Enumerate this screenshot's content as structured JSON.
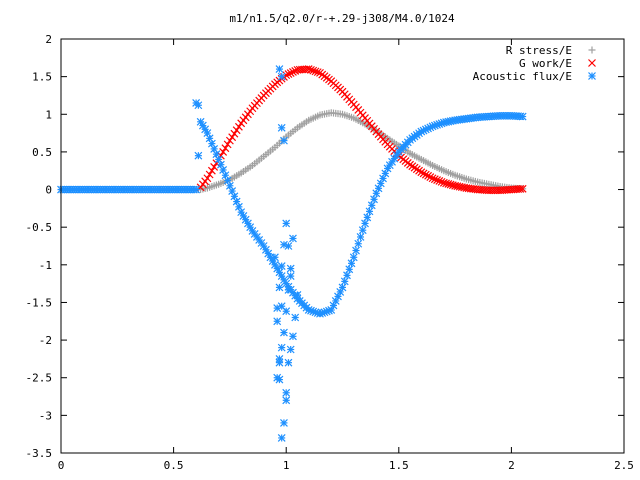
{
  "chart_data": {
    "type": "scatter",
    "title": "m1/n1.5/q2.0/r-+.29-j308/M4.0/1024",
    "xlabel": "",
    "ylabel": "",
    "xlim": [
      0,
      2.5
    ],
    "ylim": [
      -3.5,
      2
    ],
    "x_ticks": [
      "0",
      "0.5",
      "1",
      "1.5",
      "2",
      "2.5"
    ],
    "x_tick_values": [
      0,
      0.5,
      1,
      1.5,
      2,
      2.5
    ],
    "y_ticks": [
      "2",
      "1.5",
      "1",
      "0.5",
      "0",
      "-0.5",
      "-1",
      "-1.5",
      "-2",
      "-2.5",
      "-3",
      "-3.5"
    ],
    "y_tick_values": [
      2,
      1.5,
      1,
      0.5,
      0,
      -0.5,
      -1,
      -1.5,
      -2,
      -2.5,
      -3,
      -3.5
    ],
    "grid": false,
    "legend_position": "top-right",
    "series": [
      {
        "name": "R stress/E",
        "marker": "plus",
        "color": "#a0a0a0",
        "x": [
          0.0,
          0.1,
          0.2,
          0.3,
          0.4,
          0.5,
          0.6,
          0.62,
          0.65,
          0.7,
          0.75,
          0.8,
          0.85,
          0.9,
          0.95,
          1.0,
          1.05,
          1.1,
          1.15,
          1.2,
          1.25,
          1.3,
          1.35,
          1.4,
          1.45,
          1.5,
          1.55,
          1.6,
          1.65,
          1.7,
          1.75,
          1.8,
          1.85,
          1.9,
          1.95,
          2.0,
          2.05
        ],
        "y": [
          0.0,
          0.0,
          0.0,
          0.0,
          0.0,
          0.0,
          0.0,
          0.0,
          0.02,
          0.07,
          0.13,
          0.22,
          0.32,
          0.44,
          0.56,
          0.7,
          0.82,
          0.92,
          0.99,
          1.02,
          1.0,
          0.95,
          0.87,
          0.78,
          0.68,
          0.58,
          0.48,
          0.4,
          0.32,
          0.25,
          0.19,
          0.14,
          0.1,
          0.07,
          0.04,
          0.02,
          0.01
        ]
      },
      {
        "name": "G work/E",
        "marker": "cross",
        "color": "#ff0000",
        "x": [
          0.62,
          0.65,
          0.7,
          0.75,
          0.8,
          0.85,
          0.9,
          0.95,
          1.0,
          1.05,
          1.1,
          1.15,
          1.2,
          1.25,
          1.3,
          1.35,
          1.4,
          1.45,
          1.5,
          1.55,
          1.6,
          1.65,
          1.7,
          1.75,
          1.8,
          1.85,
          1.9,
          1.95,
          2.0,
          2.05
        ],
        "y": [
          0.03,
          0.15,
          0.4,
          0.65,
          0.88,
          1.08,
          1.25,
          1.4,
          1.52,
          1.59,
          1.6,
          1.55,
          1.44,
          1.3,
          1.13,
          0.95,
          0.77,
          0.6,
          0.45,
          0.33,
          0.23,
          0.15,
          0.09,
          0.05,
          0.02,
          0.0,
          -0.01,
          -0.01,
          0.0,
          0.01
        ]
      },
      {
        "name": "Acoustic flux/E",
        "marker": "star",
        "color": "#1e90ff",
        "x": [
          0.0,
          0.1,
          0.2,
          0.3,
          0.4,
          0.5,
          0.6,
          0.62,
          0.65,
          0.7,
          0.75,
          0.8,
          0.85,
          0.9,
          0.95,
          1.0,
          1.05,
          1.1,
          1.15,
          1.2,
          1.25,
          1.3,
          1.35,
          1.4,
          1.45,
          1.5,
          1.55,
          1.6,
          1.65,
          1.7,
          1.75,
          1.8,
          1.85,
          1.9,
          1.95,
          2.0,
          2.05,
          0.6,
          0.61,
          0.97,
          0.98,
          0.98,
          0.99,
          0.97,
          1.0,
          1.01,
          1.02,
          1.03,
          1.04,
          1.05,
          1.0,
          0.99,
          1.01,
          1.03,
          0.96,
          0.98,
          0.95,
          0.97,
          0.96,
          0.99,
          1.02,
          0.98
        ],
        "y": [
          0.0,
          0.0,
          0.0,
          0.0,
          0.0,
          0.0,
          0.0,
          0.9,
          0.75,
          0.4,
          0.05,
          -0.3,
          -0.55,
          -0.75,
          -1.0,
          -1.25,
          -1.45,
          -1.6,
          -1.65,
          -1.6,
          -1.3,
          -0.9,
          -0.45,
          -0.05,
          0.28,
          0.5,
          0.66,
          0.77,
          0.84,
          0.89,
          0.92,
          0.94,
          0.96,
          0.97,
          0.98,
          0.98,
          0.97,
          1.15,
          1.12,
          1.6,
          1.5,
          0.82,
          0.65,
          -1.3,
          -0.45,
          -0.75,
          -1.15,
          -0.65,
          -1.7,
          -1.4,
          -2.8,
          -3.1,
          -2.3,
          -1.95,
          -1.75,
          -3.3,
          -0.9,
          -2.25,
          -2.5,
          -1.9,
          -1.05,
          -1.55
        ]
      }
    ]
  }
}
